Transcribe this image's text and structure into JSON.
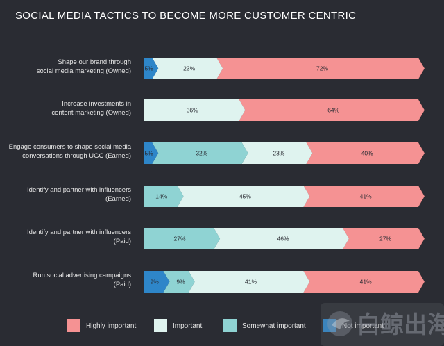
{
  "chart_data": {
    "type": "bar",
    "orientation": "horizontal",
    "stacked": true,
    "percent": true,
    "title": "SOCIAL MEDIA TACTICS TO BECOME MORE CUSTOMER CENTRIC",
    "categories": [
      [
        "Shape our brand  through",
        "social media marketing (Owned)"
      ],
      [
        "Increase investments in",
        "content marketing (Owned)"
      ],
      [
        "Engage consumers to shape social media",
        "conversations through UGC (Earned)"
      ],
      [
        "Identify and partner with influencers",
        "(Earned)"
      ],
      [
        "Identify and partner with influencers",
        "(Paid)"
      ],
      [
        "Run social advertising campaigns",
        "(Paid)"
      ]
    ],
    "series": [
      {
        "name": "Not important",
        "color": "#2e86c9",
        "values": [
          5,
          0,
          5,
          0,
          0,
          9
        ]
      },
      {
        "name": "Somewhat important",
        "color": "#8fd3d3",
        "values": [
          0,
          0,
          32,
          14,
          27,
          9
        ]
      },
      {
        "name": "Important",
        "color": "#dff3ef",
        "values": [
          23,
          36,
          23,
          45,
          46,
          41
        ]
      },
      {
        "name": "Highly important",
        "color": "#f59293",
        "values": [
          72,
          64,
          40,
          41,
          27,
          41
        ]
      }
    ],
    "legend": {
      "position": "bottom",
      "order": [
        "Highly important",
        "Important",
        "Somewhat important",
        "Not important"
      ]
    },
    "grid": false
  },
  "watermark": "白鲸出海"
}
